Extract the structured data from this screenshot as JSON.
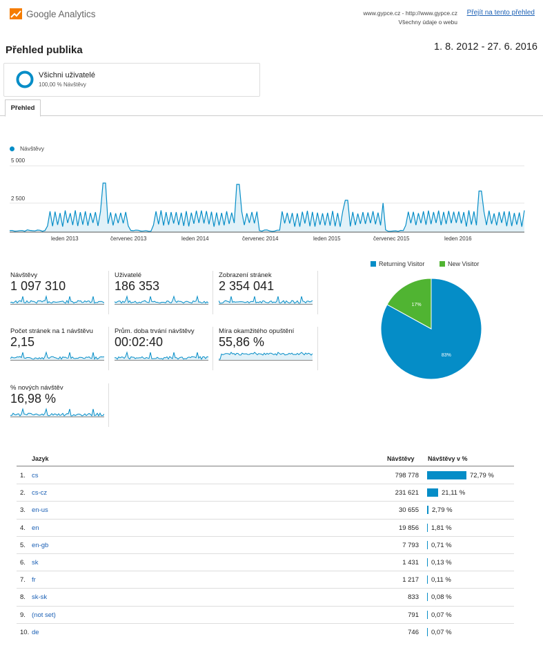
{
  "header": {
    "logo_text": "Google Analytics",
    "site_line1": "www.gypce.cz - http://www.gypce.cz",
    "site_line2": "Všechny údaje o webu",
    "switch_link": "Přejít na tento přehled"
  },
  "report": {
    "title": "Přehled publika",
    "date_range": "1. 8. 2012 - 27. 6. 2016"
  },
  "segment": {
    "name": "Všichni uživatelé",
    "percent": "100,00 % Návštěvy"
  },
  "tabs": [
    {
      "label": "Přehled",
      "active": true
    }
  ],
  "colors": {
    "accent": "#058dc7",
    "new_visitor": "#50b432",
    "link": "#1a5fb4"
  },
  "chart_data": [
    {
      "type": "line",
      "series": [
        {
          "name": "Návštěvy",
          "color": "#058dc7"
        }
      ],
      "y_ticks": [
        "5 000",
        "2 500"
      ],
      "ylim": [
        0,
        5000
      ],
      "x_ticks": [
        "leden 2013",
        "červenec 2013",
        "leden 2014",
        "červenec 2014",
        "leden 2015",
        "červenec 2015",
        "leden 2016"
      ],
      "grid": true
    },
    {
      "type": "pie",
      "categories": [
        "Returning Visitor",
        "New Visitor"
      ],
      "values": [
        83,
        17
      ],
      "labels": [
        "83%",
        "17%"
      ],
      "colors": [
        "#058dc7",
        "#50b432"
      ],
      "legend": "top"
    }
  ],
  "metrics": [
    {
      "title": "Návštěvy",
      "value": "1 097 310"
    },
    {
      "title": "Uživatelé",
      "value": "186 353"
    },
    {
      "title": "Zobrazení stránek",
      "value": "2 354 041"
    },
    {
      "title": "Počet stránek na 1 návštěvu",
      "value": "2,15"
    },
    {
      "title": "Prům. doba trvání návštěvy",
      "value": "00:02:40"
    },
    {
      "title": "Míra okamžitého opuštění",
      "value": "55,86 %"
    },
    {
      "title": "% nových návštěv",
      "value": "16,98 %"
    }
  ],
  "table": {
    "headers": {
      "language": "Jazyk",
      "visits": "Návštěvy",
      "visits_pct": "Návštěvy v %"
    },
    "rows": [
      {
        "num": "1.",
        "lang": "cs",
        "visits": "798 778",
        "pct": "72,79 %",
        "share": 0.7279
      },
      {
        "num": "2.",
        "lang": "cs-cz",
        "visits": "231 621",
        "pct": "21,11 %",
        "share": 0.2111
      },
      {
        "num": "3.",
        "lang": "en-us",
        "visits": "30 655",
        "pct": "2,79 %",
        "share": 0.0279
      },
      {
        "num": "4.",
        "lang": "en",
        "visits": "19 856",
        "pct": "1,81 %",
        "share": 0.0181
      },
      {
        "num": "5.",
        "lang": "en-gb",
        "visits": "7 793",
        "pct": "0,71 %",
        "share": 0.0071
      },
      {
        "num": "6.",
        "lang": "sk",
        "visits": "1 431",
        "pct": "0,13 %",
        "share": 0.0013
      },
      {
        "num": "7.",
        "lang": "fr",
        "visits": "1 217",
        "pct": "0,11 %",
        "share": 0.0011
      },
      {
        "num": "8.",
        "lang": "sk-sk",
        "visits": "833",
        "pct": "0,08 %",
        "share": 0.0008
      },
      {
        "num": "9.",
        "lang": "(not set)",
        "visits": "791",
        "pct": "0,07 %",
        "share": 0.0007
      },
      {
        "num": "10.",
        "lang": "de",
        "visits": "746",
        "pct": "0,07 %",
        "share": 0.0007
      }
    ]
  }
}
